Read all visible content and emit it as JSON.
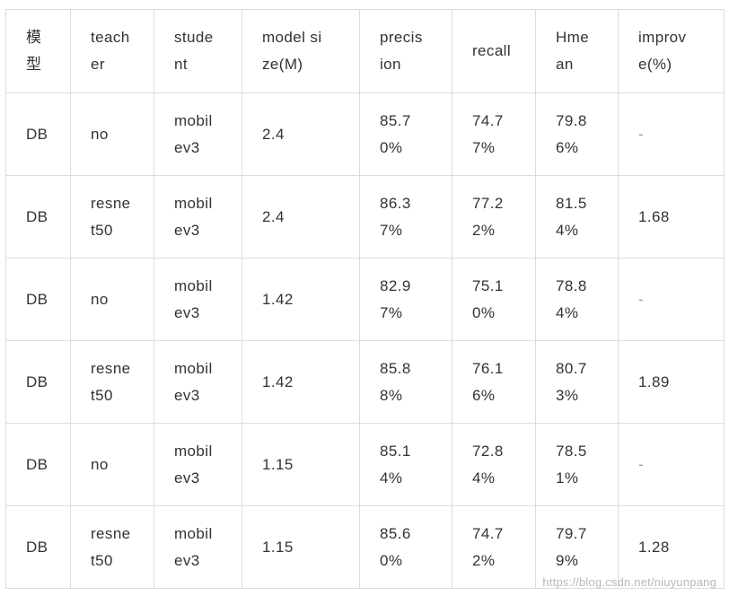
{
  "table": {
    "headers": [
      "模\n型",
      "teach\ner",
      "stude\nnt",
      "model  si\nze(M)",
      "precis\nion",
      "recall",
      "Hme\nan",
      "improv\ne(%)"
    ],
    "rows": [
      [
        "DB",
        "no",
        "mobil\nev3",
        "2.4",
        "85.7\n0%",
        "74.7\n7%",
        "79.8\n6%",
        "-"
      ],
      [
        "DB",
        "resne\nt50",
        "mobil\nev3",
        "2.4",
        "86.3\n7%",
        "77.2\n2%",
        "81.5\n4%",
        "1.68"
      ],
      [
        "DB",
        "no",
        "mobil\nev3",
        "1.42",
        "82.9\n7%",
        "75.1\n0%",
        "78.8\n4%",
        "-"
      ],
      [
        "DB",
        "resne\nt50",
        "mobil\nev3",
        "1.42",
        "85.8\n8%",
        "76.1\n6%",
        "80.7\n3%",
        "1.89"
      ],
      [
        "DB",
        "no",
        "mobil\nev3",
        "1.15",
        "85.1\n4%",
        "72.8\n4%",
        "78.5\n1%",
        "-"
      ],
      [
        "DB",
        "resne\nt50",
        "mobil\nev3",
        "1.15",
        "85.6\n0%",
        "74.7\n2%",
        "79.7\n9%",
        "1.28"
      ]
    ]
  },
  "watermark": "https://blog.csdn.net/niuyunpang"
}
